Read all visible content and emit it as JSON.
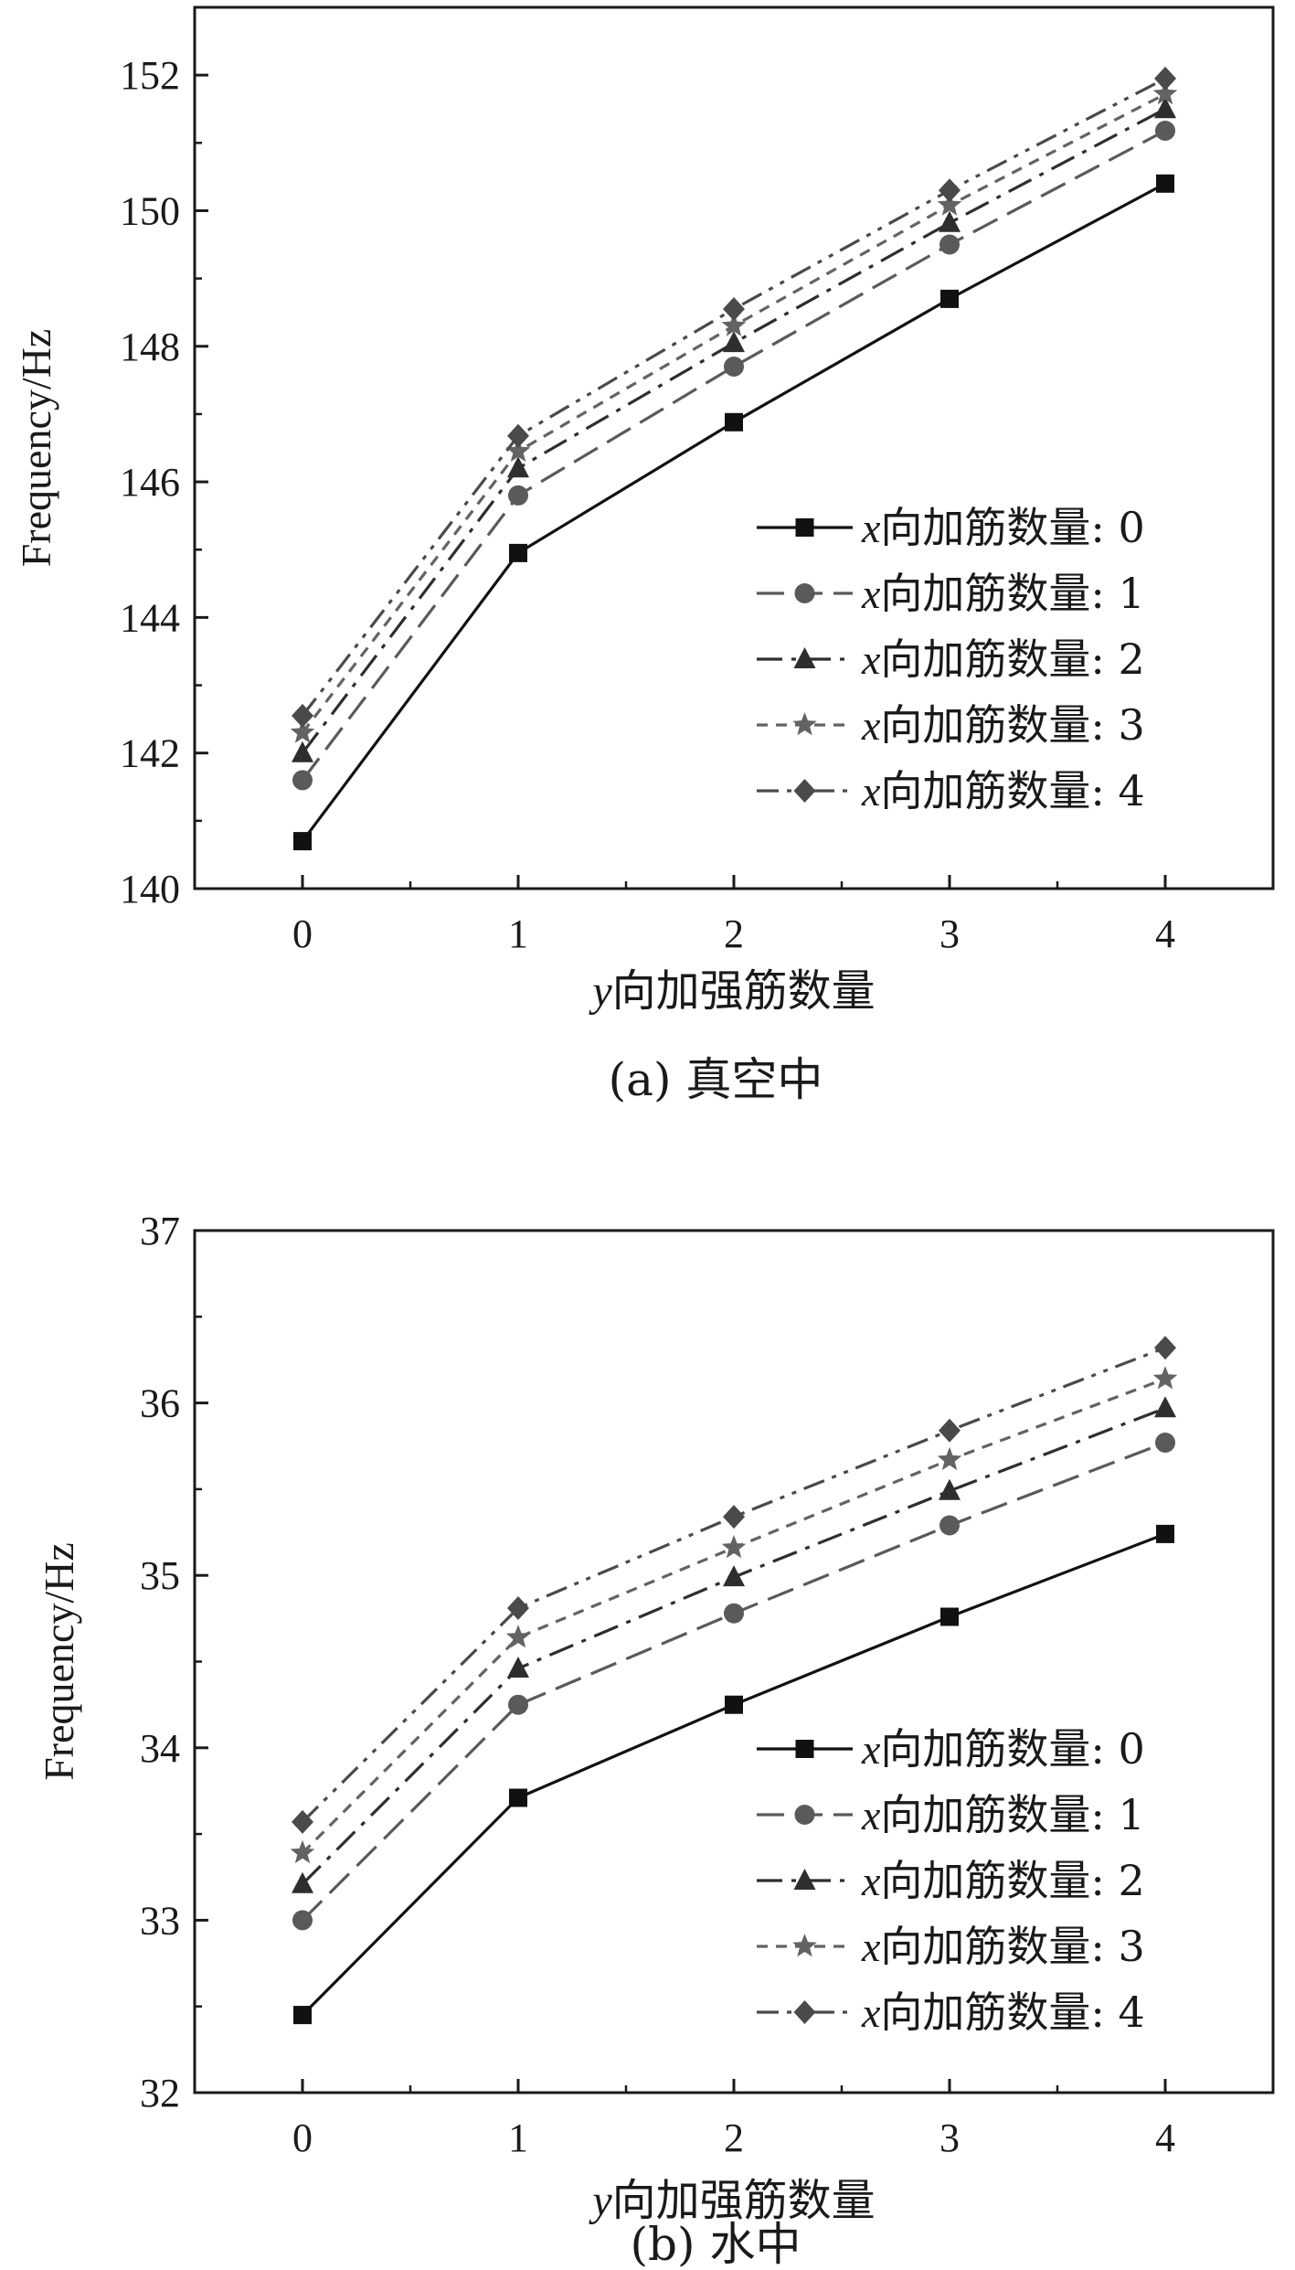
{
  "chart_data": [
    {
      "type": "line",
      "caption": "(a) 真空中",
      "xlabel_var": "y",
      "xlabel_text": "向加强筋数量",
      "ylabel": "Frequency/Hz",
      "x": [
        0,
        1,
        2,
        3,
        4
      ],
      "xticks": [
        "0",
        "1",
        "2",
        "3",
        "4"
      ],
      "xlim": [
        -0.5,
        4.5
      ],
      "ylim": [
        140,
        153
      ],
      "yticks": [
        "140",
        "142",
        "144",
        "146",
        "148",
        "150",
        "152"
      ],
      "ytick_values": [
        140,
        142,
        144,
        146,
        148,
        150,
        152
      ],
      "legend_location": "lower-right",
      "series": [
        {
          "name_var": "x",
          "name_text": "向加筋数量: 0",
          "marker": "square",
          "dash": "solid",
          "color": "#111111",
          "values": [
            140.7,
            144.95,
            146.88,
            148.7,
            150.4
          ]
        },
        {
          "name_var": "x",
          "name_text": "向加筋数量: 1",
          "marker": "circle",
          "dash": "dash",
          "color": "#5a5a5a",
          "values": [
            141.6,
            145.8,
            147.7,
            149.5,
            151.18
          ]
        },
        {
          "name_var": "x",
          "name_text": "向加筋数量: 2",
          "marker": "triangle",
          "dash": "dashdot",
          "color": "#2e2e2e",
          "values": [
            142.0,
            146.2,
            148.05,
            149.82,
            151.5
          ]
        },
        {
          "name_var": "x",
          "name_text": "向加筋数量: 3",
          "marker": "star",
          "dash": "shortdash",
          "color": "#636363",
          "values": [
            142.3,
            146.45,
            148.3,
            150.08,
            151.72
          ]
        },
        {
          "name_var": "x",
          "name_text": "向加筋数量: 4",
          "marker": "diamond",
          "dash": "dashdotdot",
          "color": "#4a4a4a",
          "values": [
            142.55,
            146.68,
            148.55,
            150.3,
            151.95
          ]
        }
      ]
    },
    {
      "type": "line",
      "caption": "(b) 水中",
      "xlabel_var": "y",
      "xlabel_text": "向加强筋数量",
      "ylabel": "Frequency/Hz",
      "x": [
        0,
        1,
        2,
        3,
        4
      ],
      "xticks": [
        "0",
        "1",
        "2",
        "3",
        "4"
      ],
      "xlim": [
        -0.5,
        4.5
      ],
      "ylim": [
        32,
        37
      ],
      "yticks": [
        "32",
        "33",
        "34",
        "35",
        "36",
        "37"
      ],
      "ytick_values": [
        32,
        33,
        34,
        35,
        36,
        37
      ],
      "legend_location": "lower-right",
      "series": [
        {
          "name_var": "x",
          "name_text": "向加筋数量: 0",
          "marker": "square",
          "dash": "solid",
          "color": "#111111",
          "values": [
            32.45,
            33.71,
            34.25,
            34.76,
            35.24
          ]
        },
        {
          "name_var": "x",
          "name_text": "向加筋数量: 1",
          "marker": "circle",
          "dash": "dash",
          "color": "#5a5a5a",
          "values": [
            33.0,
            34.25,
            34.78,
            35.29,
            35.77
          ]
        },
        {
          "name_var": "x",
          "name_text": "向加筋数量: 2",
          "marker": "triangle",
          "dash": "dashdot",
          "color": "#2e2e2e",
          "values": [
            33.21,
            34.46,
            34.99,
            35.49,
            35.97
          ]
        },
        {
          "name_var": "x",
          "name_text": "向加筋数量: 3",
          "marker": "star",
          "dash": "shortdash",
          "color": "#636363",
          "values": [
            33.39,
            34.64,
            35.16,
            35.67,
            36.14
          ]
        },
        {
          "name_var": "x",
          "name_text": "向加筋数量: 4",
          "marker": "diamond",
          "dash": "dashdotdot",
          "color": "#4a4a4a",
          "values": [
            33.57,
            34.81,
            35.34,
            35.84,
            36.32
          ]
        }
      ]
    }
  ]
}
